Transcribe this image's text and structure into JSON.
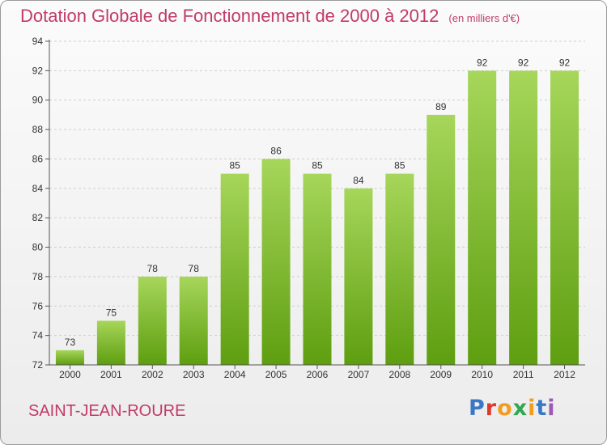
{
  "header": {
    "title": "Dotation Globale de Fonctionnement de 2000 à 2012",
    "unit": "(en milliers d'€)"
  },
  "footer": {
    "commune": "SAINT-JEAN-ROURE",
    "logo_letters": [
      "P",
      "r",
      "o",
      "x",
      "i",
      "t",
      "i"
    ]
  },
  "colors": {
    "title": "#c13a6a",
    "bar_light": "#a6d65a",
    "bar_dark": "#5e9e10",
    "grid": "#cfcfcf",
    "axis": "#555555"
  },
  "chart_data": {
    "type": "bar",
    "title": "Dotation Globale de Fonctionnement de 2000 à 2012",
    "xlabel": "",
    "ylabel": "",
    "categories": [
      "2000",
      "2001",
      "2002",
      "2003",
      "2004",
      "2005",
      "2006",
      "2007",
      "2008",
      "2009",
      "2010",
      "2011",
      "2012"
    ],
    "values": [
      73,
      75,
      78,
      78,
      85,
      86,
      85,
      84,
      85,
      89,
      92,
      92,
      92
    ],
    "ylim": [
      72,
      94
    ],
    "yticks": [
      72,
      74,
      76,
      78,
      80,
      82,
      84,
      86,
      88,
      90,
      92,
      94
    ],
    "grid": true,
    "legend": "none"
  }
}
